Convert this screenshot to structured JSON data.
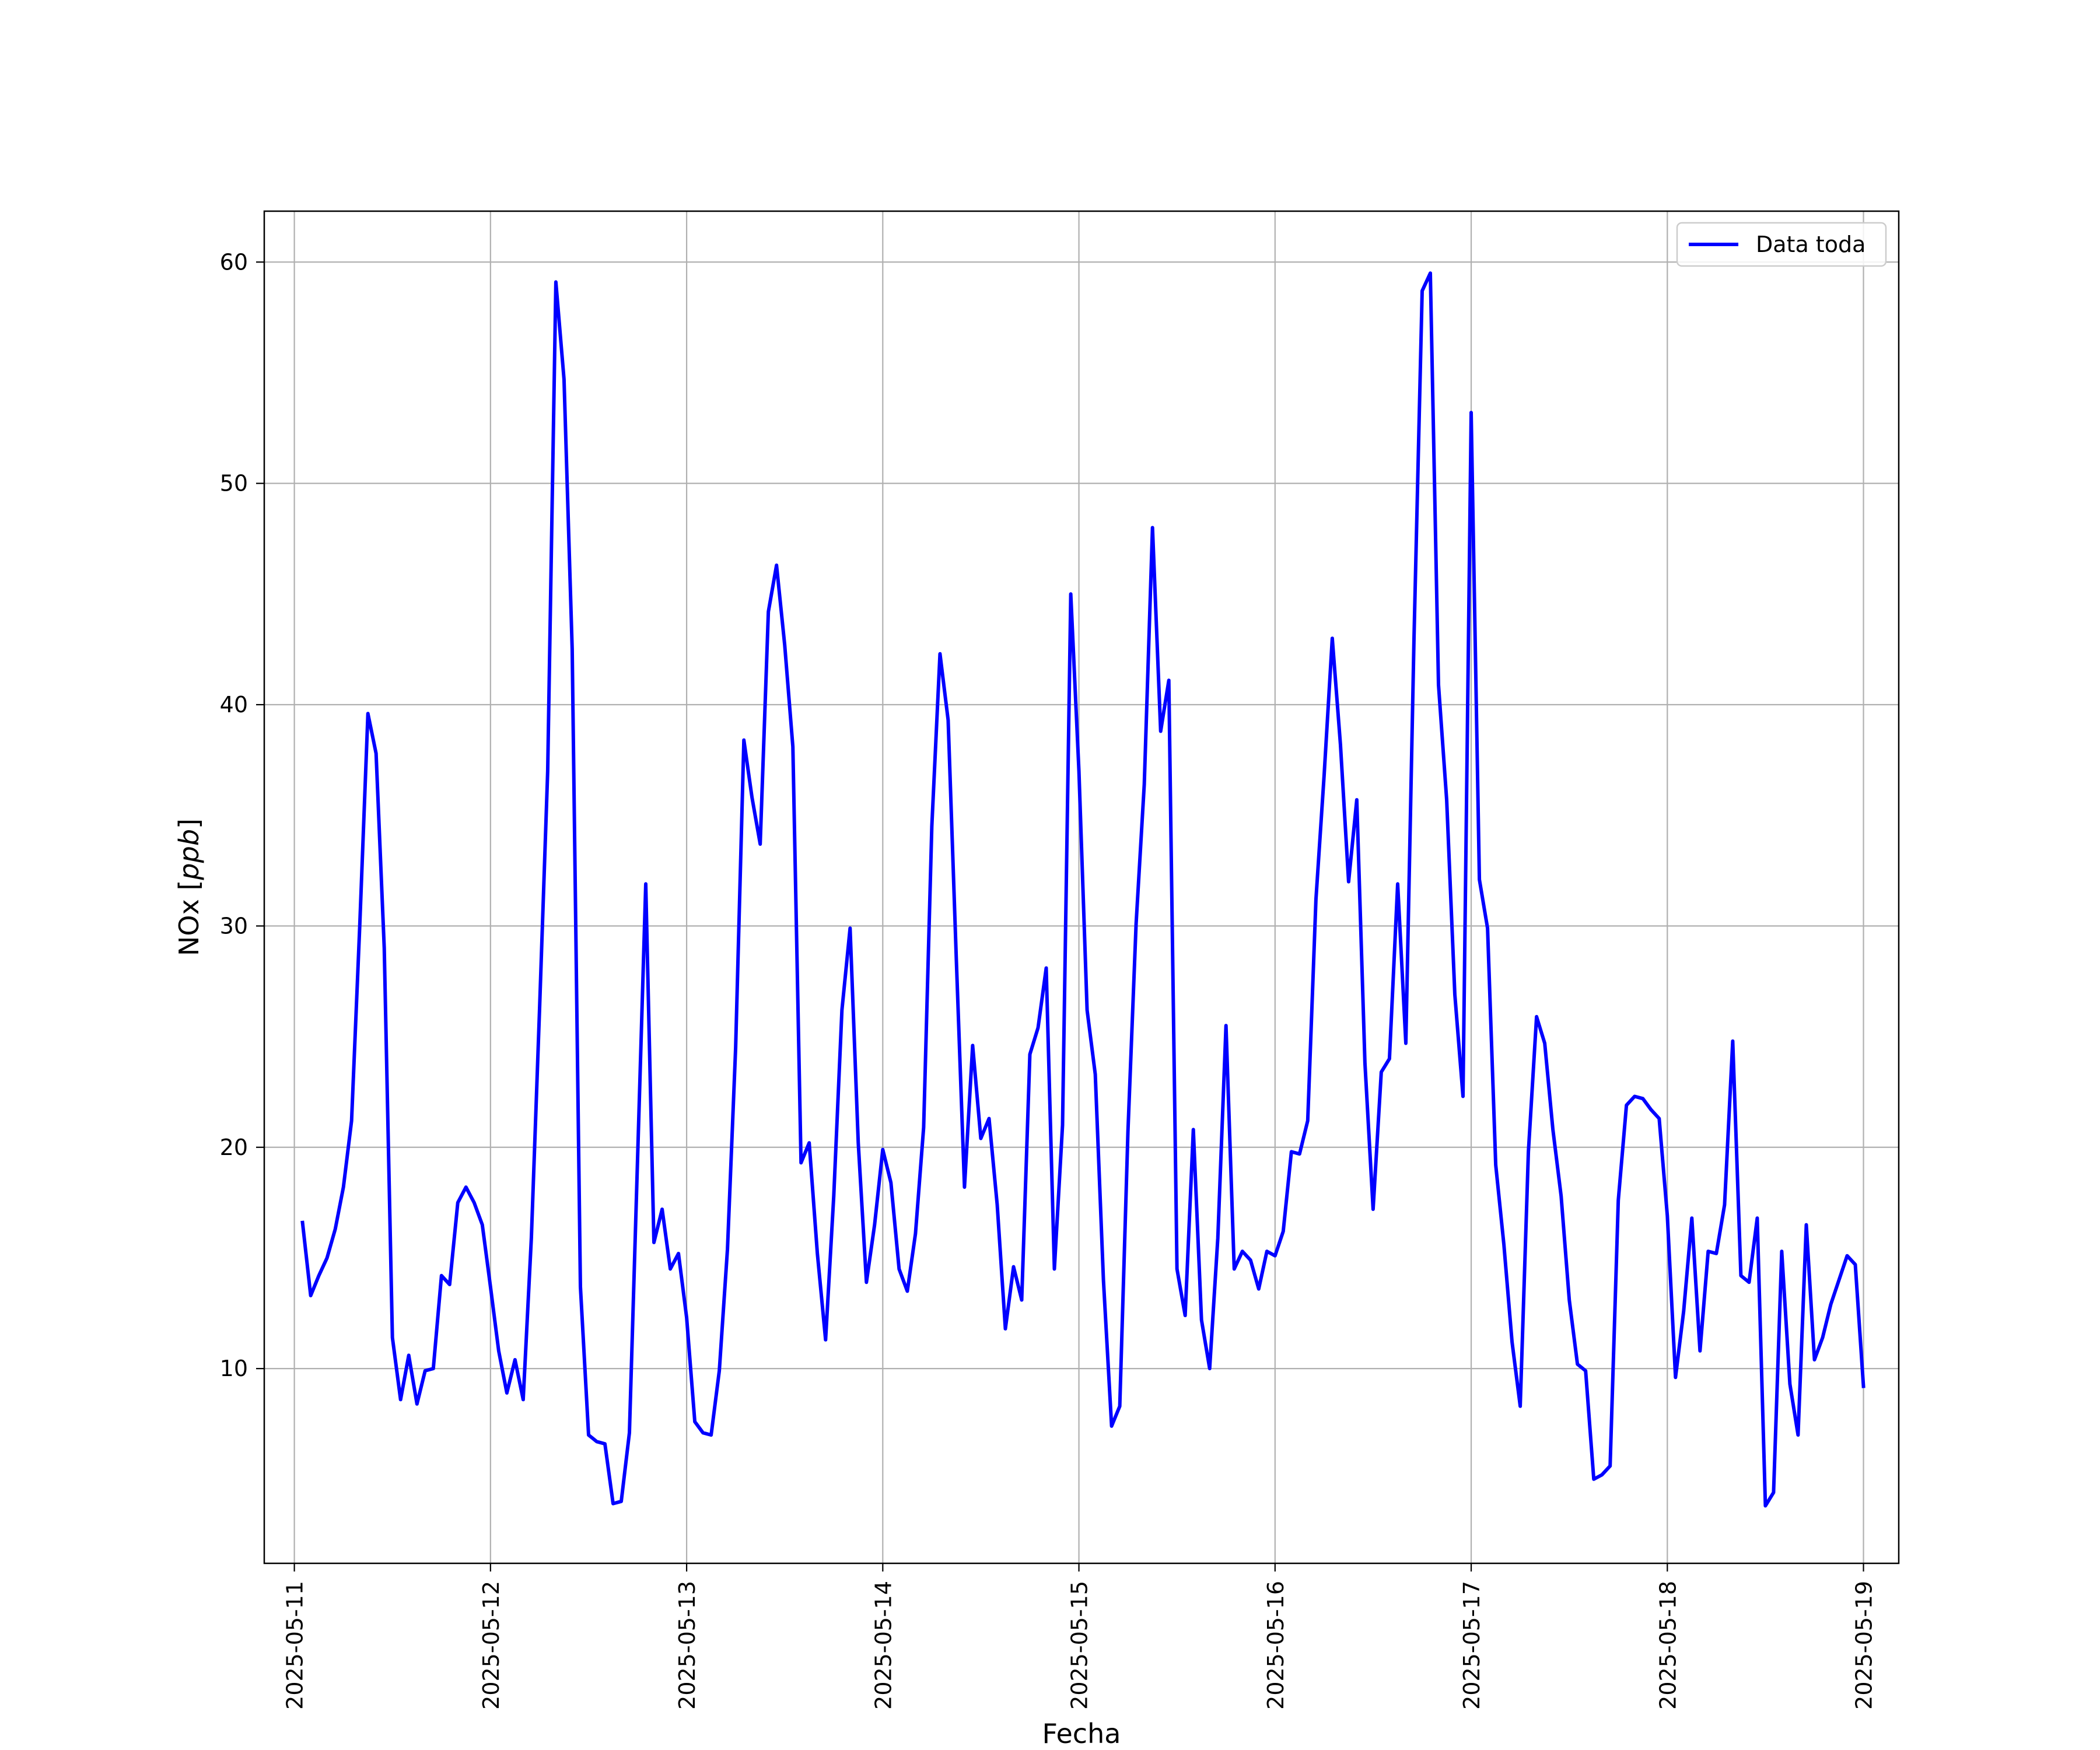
{
  "chart_data": {
    "type": "line",
    "title": "",
    "xlabel": "Fecha",
    "ylabel": "NOx [ppb]",
    "ylabel_main": "NOx [",
    "ylabel_unit": "ppb",
    "ylabel_end": "]",
    "x_tick_labels": [
      "2025-05-11",
      "2025-05-12",
      "2025-05-13",
      "2025-05-14",
      "2025-05-15",
      "2025-05-16",
      "2025-05-17",
      "2025-05-18",
      "2025-05-19"
    ],
    "y_ticks": [
      10,
      20,
      30,
      40,
      50,
      60
    ],
    "xlim": [
      "2025-05-10T20:19",
      "2025-05-19T04:19"
    ],
    "ylim": [
      1.2,
      62.3
    ],
    "grid": true,
    "legend_position": "top-right",
    "series": [
      {
        "name": "Data toda",
        "color": "#0000ff",
        "x": [
          "2025-05-11T01:00",
          "2025-05-11T02:00",
          "2025-05-11T03:00",
          "2025-05-11T04:00",
          "2025-05-11T05:00",
          "2025-05-11T06:00",
          "2025-05-11T07:00",
          "2025-05-11T08:00",
          "2025-05-11T09:00",
          "2025-05-11T10:00",
          "2025-05-11T11:00",
          "2025-05-11T12:00",
          "2025-05-11T13:00",
          "2025-05-11T14:00",
          "2025-05-11T15:00",
          "2025-05-11T16:00",
          "2025-05-11T17:00",
          "2025-05-11T18:00",
          "2025-05-11T19:00",
          "2025-05-11T20:00",
          "2025-05-11T21:00",
          "2025-05-11T22:00",
          "2025-05-11T23:00",
          "2025-05-12T00:00",
          "2025-05-12T01:00",
          "2025-05-12T02:00",
          "2025-05-12T03:00",
          "2025-05-12T04:00",
          "2025-05-12T05:00",
          "2025-05-12T06:00",
          "2025-05-12T07:00",
          "2025-05-12T08:00",
          "2025-05-12T09:00",
          "2025-05-12T10:00",
          "2025-05-12T11:00",
          "2025-05-12T12:00",
          "2025-05-12T13:00",
          "2025-05-12T14:00",
          "2025-05-12T15:00",
          "2025-05-12T16:00",
          "2025-05-12T17:00",
          "2025-05-12T18:00",
          "2025-05-12T19:00",
          "2025-05-12T20:00",
          "2025-05-12T21:00",
          "2025-05-12T22:00",
          "2025-05-12T23:00",
          "2025-05-13T00:00",
          "2025-05-13T01:00",
          "2025-05-13T02:00",
          "2025-05-13T03:00",
          "2025-05-13T04:00",
          "2025-05-13T05:00",
          "2025-05-13T06:00",
          "2025-05-13T07:00",
          "2025-05-13T08:00",
          "2025-05-13T09:00",
          "2025-05-13T10:00",
          "2025-05-13T11:00",
          "2025-05-13T12:00",
          "2025-05-13T13:00",
          "2025-05-13T14:00",
          "2025-05-13T15:00",
          "2025-05-13T16:00",
          "2025-05-13T17:00",
          "2025-05-13T18:00",
          "2025-05-13T19:00",
          "2025-05-13T20:00",
          "2025-05-13T21:00",
          "2025-05-13T22:00",
          "2025-05-13T23:00",
          "2025-05-14T00:00",
          "2025-05-14T01:00",
          "2025-05-14T02:00",
          "2025-05-14T03:00",
          "2025-05-14T04:00",
          "2025-05-14T05:00",
          "2025-05-14T06:00",
          "2025-05-14T07:00",
          "2025-05-14T08:00",
          "2025-05-14T09:00",
          "2025-05-14T10:00",
          "2025-05-14T11:00",
          "2025-05-14T12:00",
          "2025-05-14T13:00",
          "2025-05-14T14:00",
          "2025-05-14T15:00",
          "2025-05-14T16:00",
          "2025-05-14T17:00",
          "2025-05-14T18:00",
          "2025-05-14T19:00",
          "2025-05-14T20:00",
          "2025-05-14T21:00",
          "2025-05-14T22:00",
          "2025-05-14T23:00",
          "2025-05-15T00:00",
          "2025-05-15T01:00",
          "2025-05-15T02:00",
          "2025-05-15T03:00",
          "2025-05-15T04:00",
          "2025-05-15T05:00",
          "2025-05-15T06:00",
          "2025-05-15T07:00",
          "2025-05-15T08:00",
          "2025-05-15T09:00",
          "2025-05-15T10:00",
          "2025-05-15T11:00",
          "2025-05-15T12:00",
          "2025-05-15T13:00",
          "2025-05-15T14:00",
          "2025-05-15T15:00",
          "2025-05-15T16:00",
          "2025-05-15T17:00",
          "2025-05-15T18:00",
          "2025-05-15T19:00",
          "2025-05-15T20:00",
          "2025-05-15T21:00",
          "2025-05-15T22:00",
          "2025-05-15T23:00",
          "2025-05-16T00:00",
          "2025-05-16T01:00",
          "2025-05-16T02:00",
          "2025-05-16T03:00",
          "2025-05-16T04:00",
          "2025-05-16T05:00",
          "2025-05-16T06:00",
          "2025-05-16T07:00",
          "2025-05-16T08:00",
          "2025-05-16T09:00",
          "2025-05-16T10:00",
          "2025-05-16T11:00",
          "2025-05-16T12:00",
          "2025-05-16T13:00",
          "2025-05-16T14:00",
          "2025-05-16T15:00",
          "2025-05-16T16:00",
          "2025-05-16T17:00",
          "2025-05-16T18:00",
          "2025-05-16T19:00",
          "2025-05-16T20:00",
          "2025-05-16T21:00",
          "2025-05-16T22:00",
          "2025-05-16T23:00",
          "2025-05-17T00:00",
          "2025-05-17T01:00",
          "2025-05-17T02:00",
          "2025-05-17T03:00",
          "2025-05-17T04:00",
          "2025-05-17T05:00",
          "2025-05-17T06:00",
          "2025-05-17T07:00",
          "2025-05-17T08:00",
          "2025-05-17T09:00",
          "2025-05-17T10:00",
          "2025-05-17T11:00",
          "2025-05-17T12:00",
          "2025-05-17T13:00",
          "2025-05-17T14:00",
          "2025-05-17T15:00",
          "2025-05-17T16:00",
          "2025-05-17T17:00",
          "2025-05-17T18:00",
          "2025-05-17T19:00",
          "2025-05-17T20:00",
          "2025-05-17T21:00",
          "2025-05-17T22:00",
          "2025-05-17T23:00",
          "2025-05-18T00:00",
          "2025-05-18T01:00",
          "2025-05-18T02:00",
          "2025-05-18T03:00",
          "2025-05-18T04:00",
          "2025-05-18T05:00",
          "2025-05-18T06:00",
          "2025-05-18T07:00",
          "2025-05-18T08:00",
          "2025-05-18T09:00",
          "2025-05-18T10:00",
          "2025-05-18T11:00",
          "2025-05-18T12:00",
          "2025-05-18T13:00",
          "2025-05-18T14:00",
          "2025-05-18T15:00",
          "2025-05-18T16:00",
          "2025-05-18T17:00",
          "2025-05-18T18:00",
          "2025-05-18T19:00",
          "2025-05-18T20:00",
          "2025-05-18T21:00",
          "2025-05-18T22:00",
          "2025-05-18T23:00",
          "2025-05-19T00:00"
        ],
        "values": [
          16.6,
          13.3,
          14.2,
          15.0,
          16.3,
          18.2,
          21.2,
          30.0,
          39.6,
          37.8,
          29.0,
          11.4,
          8.6,
          10.6,
          8.4,
          9.9,
          10.0,
          14.2,
          13.8,
          17.5,
          18.2,
          17.5,
          16.5,
          13.7,
          10.8,
          8.9,
          10.4,
          8.6,
          15.9,
          26.2,
          37.0,
          59.1,
          54.7,
          42.5,
          13.7,
          7.0,
          6.7,
          6.6,
          3.9,
          4.0,
          7.1,
          19.5,
          31.9,
          15.7,
          17.2,
          14.5,
          15.2,
          12.3,
          7.6,
          7.1,
          7.0,
          9.9,
          15.4,
          24.5,
          38.4,
          35.8,
          33.7,
          44.2,
          46.3,
          42.7,
          38.1,
          19.3,
          20.2,
          15.2,
          11.3,
          17.8,
          26.2,
          29.9,
          20.2,
          13.9,
          16.5,
          19.9,
          18.4,
          14.5,
          13.5,
          16.1,
          20.9,
          34.5,
          42.3,
          39.3,
          28.5,
          18.2,
          24.6,
          20.4,
          21.3,
          17.4,
          11.8,
          14.6,
          13.1,
          24.2,
          25.4,
          28.1,
          14.5,
          21.0,
          45.0,
          37.0,
          26.2,
          23.3,
          14.0,
          7.4,
          8.3,
          20.7,
          30.1,
          36.4,
          48.0,
          38.8,
          41.1,
          14.5,
          12.4,
          20.8,
          12.2,
          10.0,
          15.9,
          25.5,
          14.5,
          15.3,
          14.9,
          13.6,
          15.3,
          15.1,
          16.2,
          19.8,
          19.7,
          21.2,
          31.2,
          36.8,
          43.0,
          38.2,
          32.0,
          35.7,
          23.8,
          17.2,
          23.4,
          24.0,
          31.9,
          24.7,
          43.0,
          58.7,
          59.5,
          40.9,
          35.7,
          26.9,
          22.3,
          53.2,
          32.1,
          29.9,
          19.2,
          15.6,
          11.2,
          8.3,
          19.8,
          25.9,
          24.7,
          20.8,
          17.8,
          13.1,
          10.2,
          9.9,
          5.0,
          5.2,
          5.6,
          17.6,
          21.9,
          22.3,
          22.2,
          21.7,
          21.3,
          16.9,
          9.6,
          12.6,
          16.8,
          10.8,
          15.3,
          15.2,
          17.4,
          24.8,
          14.2,
          13.9,
          16.8,
          3.8,
          4.4,
          15.3,
          9.3,
          7.0,
          16.5,
          10.4,
          11.4,
          12.9,
          14.0,
          15.1,
          14.7,
          9.2
        ]
      }
    ]
  }
}
